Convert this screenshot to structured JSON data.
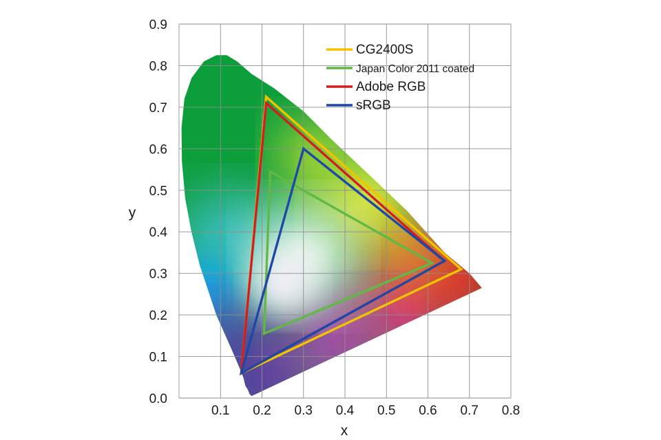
{
  "chart_data": {
    "type": "scatter",
    "subtype": "CIE 1931 chromaticity diagram with gamut triangles",
    "xlabel": "x",
    "ylabel": "y",
    "xlim": [
      0.0,
      0.8
    ],
    "ylim": [
      0.0,
      0.9
    ],
    "x_ticks": [
      "0.1",
      "0.2",
      "0.3",
      "0.4",
      "0.5",
      "0.6",
      "0.7",
      "0.8"
    ],
    "y_ticks": [
      "0.0",
      "0.1",
      "0.2",
      "0.3",
      "0.4",
      "0.5",
      "0.6",
      "0.7",
      "0.8",
      "0.9"
    ],
    "grid": true,
    "legend_position": "top-right",
    "spectral_locus": [
      [
        0.175,
        0.005
      ],
      [
        0.17,
        0.01
      ],
      [
        0.166,
        0.02
      ],
      [
        0.16,
        0.03
      ],
      [
        0.155,
        0.05
      ],
      [
        0.145,
        0.075
      ],
      [
        0.13,
        0.11
      ],
      [
        0.11,
        0.155
      ],
      [
        0.09,
        0.2
      ],
      [
        0.07,
        0.26
      ],
      [
        0.05,
        0.32
      ],
      [
        0.03,
        0.4
      ],
      [
        0.015,
        0.48
      ],
      [
        0.007,
        0.57
      ],
      [
        0.006,
        0.65
      ],
      [
        0.013,
        0.72
      ],
      [
        0.03,
        0.77
      ],
      [
        0.06,
        0.81
      ],
      [
        0.09,
        0.825
      ],
      [
        0.115,
        0.825
      ],
      [
        0.14,
        0.81
      ],
      [
        0.175,
        0.78
      ],
      [
        0.23,
        0.745
      ],
      [
        0.3,
        0.69
      ],
      [
        0.37,
        0.62
      ],
      [
        0.45,
        0.545
      ],
      [
        0.55,
        0.45
      ],
      [
        0.64,
        0.35
      ],
      [
        0.7,
        0.3
      ],
      [
        0.73,
        0.265
      ]
    ],
    "series": [
      {
        "name": "CG2400S",
        "color": "#f2c400",
        "points": [
          [
            0.21,
            0.725
          ],
          [
            0.68,
            0.31
          ],
          [
            0.15,
            0.06
          ]
        ]
      },
      {
        "name": "Japan Color 2011 coated",
        "color": "#62b846",
        "points": [
          [
            0.22,
            0.545
          ],
          [
            0.61,
            0.325
          ],
          [
            0.205,
            0.155
          ]
        ]
      },
      {
        "name": "Adobe RGB",
        "color": "#d21e1e",
        "points": [
          [
            0.21,
            0.71
          ],
          [
            0.64,
            0.33
          ],
          [
            0.15,
            0.06
          ]
        ]
      },
      {
        "name": "sRGB",
        "color": "#1f47a6",
        "points": [
          [
            0.3,
            0.6
          ],
          [
            0.64,
            0.33
          ],
          [
            0.15,
            0.06
          ]
        ]
      }
    ]
  }
}
